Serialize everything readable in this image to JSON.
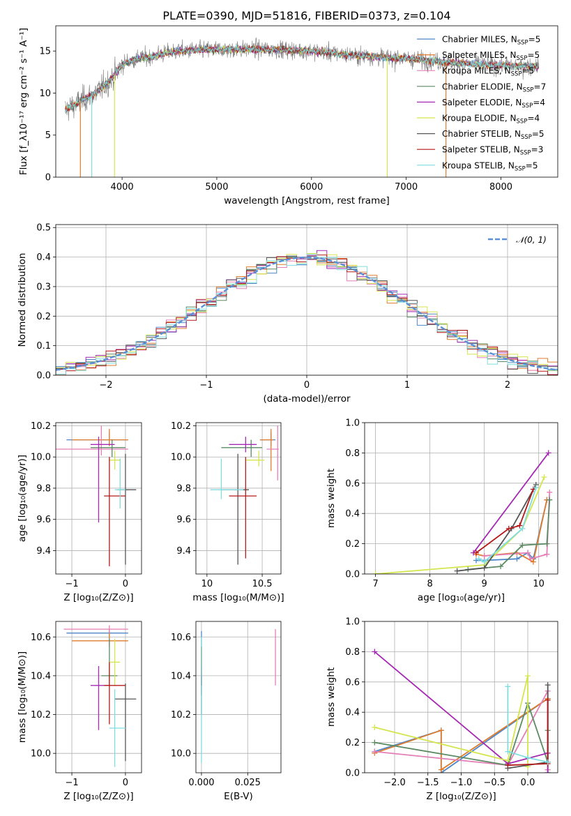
{
  "figure_title": "PLATE=0390, MJD=51816, FIBERID=0373, z=0.104",
  "models": [
    {
      "name": "Chabrier MILES",
      "n": "5",
      "color": "#4f87c7"
    },
    {
      "name": "Salpeter MILES",
      "n": "5",
      "color": "#e07c2c"
    },
    {
      "name": "Kroupa MILES",
      "n": "5",
      "color": "#e37fb6"
    },
    {
      "name": "Chabrier ELODIE",
      "n": "7",
      "color": "#5b8a63"
    },
    {
      "name": "Salpeter ELODIE",
      "n": "4",
      "color": "#a52ab2"
    },
    {
      "name": "Kroupa ELODIE",
      "n": "4",
      "color": "#d4e54d"
    },
    {
      "name": "Chabrier STELIB",
      "n": "5",
      "color": "#555555"
    },
    {
      "name": "Salpeter STELIB",
      "n": "3",
      "color": "#b41919"
    },
    {
      "name": "Kroupa STELIB",
      "n": "5",
      "color": "#7fdde0"
    }
  ],
  "chart_data": [
    {
      "id": "spectrum",
      "type": "line",
      "xlabel": "wavelength [Angstrom, rest frame]",
      "ylabel": "Flux [f_λ10⁻¹⁷ erg cm⁻² s⁻¹ A⁻¹]",
      "xlim": [
        3300,
        8600
      ],
      "ylim": [
        0,
        18
      ],
      "xticks": [
        4000,
        5000,
        6000,
        7000,
        8000
      ],
      "yticks": [
        0,
        5,
        10,
        15
      ],
      "legend_position": "upper right",
      "continuum": {
        "x": [
          3400,
          3500,
          3600,
          3700,
          3800,
          3900,
          4000,
          4100,
          4200,
          4300,
          4400,
          4600,
          4800,
          5000,
          5200,
          5400,
          5600,
          5800,
          6000,
          6200,
          6400,
          6600,
          6800,
          7000,
          7200,
          7400,
          7600,
          7800,
          8000,
          8200,
          8400
        ],
        "y": [
          8.0,
          8.6,
          9.3,
          9.8,
          10.8,
          11.8,
          13.4,
          13.9,
          14.2,
          14.3,
          14.6,
          15.0,
          15.1,
          15.2,
          15.2,
          15.2,
          15.2,
          15.1,
          15.0,
          14.8,
          14.5,
          14.4,
          14.2,
          14.1,
          13.9,
          13.7,
          13.5,
          13.4,
          13.3,
          13.2,
          13.2
        ]
      },
      "dropouts": [
        {
          "x": 3560,
          "model": "Salpeter MILES"
        },
        {
          "x": 3680,
          "model": "Kroupa STELIB"
        },
        {
          "x": 3920,
          "model": "Kroupa ELODIE"
        },
        {
          "x": 6800,
          "model": "Kroupa ELODIE"
        },
        {
          "x": 7420,
          "model": "Salpeter MILES"
        }
      ]
    },
    {
      "id": "residuals",
      "type": "histogram",
      "xlabel": "(data-model)/error",
      "ylabel": "Normed distribution",
      "xlim": [
        -2.5,
        2.5
      ],
      "ylim": [
        0,
        0.51
      ],
      "xticks": [
        -2,
        -1,
        0,
        1,
        2
      ],
      "yticks": [
        0.0,
        0.1,
        0.2,
        0.3,
        0.4,
        0.5
      ],
      "reference_label": "𝒩(0, 1)",
      "reference_color": "#5b8fd6",
      "bins": {
        "start": -2.5,
        "width": 0.1,
        "count": 50
      }
    },
    {
      "id": "age_vs_Z",
      "type": "errorbar",
      "xlabel": "Z [log₁₀(Z/Z⊙)]",
      "ylabel": "age  [log₁₀(age/yr)]",
      "xlim": [
        -1.3,
        0.3
      ],
      "ylim": [
        9.25,
        10.22
      ],
      "xticks": [
        -1,
        0
      ],
      "yticks": [
        9.4,
        9.6,
        9.8,
        10.0,
        10.2
      ],
      "points": [
        {
          "model": "Chabrier MILES",
          "x": -0.3,
          "xerr": [
            0.8,
            0.35
          ],
          "y": 10.11,
          "yerr": [
            0.04,
            0.05
          ]
        },
        {
          "model": "Salpeter MILES",
          "x": -0.3,
          "xerr": [
            0.7,
            0.35
          ],
          "y": 10.11,
          "yerr": [
            0.04,
            0.07
          ]
        },
        {
          "model": "Kroupa MILES",
          "x": -0.45,
          "xerr": [
            0.85,
            0.5
          ],
          "y": 10.05,
          "yerr": [
            0.04,
            0.15
          ]
        },
        {
          "model": "Chabrier ELODIE",
          "x": -0.25,
          "xerr": [
            0.4,
            0.25
          ],
          "y": 10.06,
          "yerr": [
            0.06,
            0.05
          ]
        },
        {
          "model": "Salpeter ELODIE",
          "x": -0.5,
          "xerr": [
            0.15,
            0.3
          ],
          "y": 10.08,
          "yerr": [
            0.5,
            0.05
          ]
        },
        {
          "model": "Kroupa ELODIE",
          "x": -0.2,
          "xerr": [
            0.1,
            0.1
          ],
          "y": 9.98,
          "yerr": [
            0.06,
            0.06
          ]
        },
        {
          "model": "Chabrier STELIB",
          "x": 0.0,
          "xerr": [
            0.15,
            0.2
          ],
          "y": 9.79,
          "yerr": [
            0.48,
            0.23
          ]
        },
        {
          "model": "Salpeter STELIB",
          "x": -0.3,
          "xerr": [
            0.1,
            0.3
          ],
          "y": 9.75,
          "yerr": [
            0.45,
            0.25
          ]
        },
        {
          "model": "Kroupa STELIB",
          "x": -0.1,
          "xerr": [
            0.1,
            0.1
          ],
          "y": 9.79,
          "yerr": [
            0.12,
            0.2
          ]
        }
      ]
    },
    {
      "id": "age_vs_mass",
      "type": "errorbar",
      "xlabel": "mass [log₁₀(M/M⊙)]",
      "ylabel": "",
      "xlim": [
        9.9,
        10.67
      ],
      "ylim": [
        9.25,
        10.22
      ],
      "xticks": [
        10.0,
        10.5
      ],
      "yticks": [
        9.4,
        9.6,
        9.8,
        10.0,
        10.2
      ],
      "points": [
        {
          "model": "Chabrier MILES",
          "x": 10.58,
          "xerr": [
            0.1,
            0.04
          ],
          "y": 10.11,
          "yerr": [
            0.04,
            0.05
          ]
        },
        {
          "model": "Salpeter MILES",
          "x": 10.58,
          "xerr": [
            0.1,
            0.02
          ],
          "y": 10.11,
          "yerr": [
            0.2,
            0.07
          ]
        },
        {
          "model": "Kroupa MILES",
          "x": 10.64,
          "xerr": [
            0.1,
            0.01
          ],
          "y": 10.05,
          "yerr": [
            0.2,
            0.15
          ]
        },
        {
          "model": "Chabrier ELODIE",
          "x": 10.4,
          "xerr": [
            0.27,
            0.1
          ],
          "y": 10.06,
          "yerr": [
            0.06,
            0.05
          ]
        },
        {
          "model": "Salpeter ELODIE",
          "x": 10.35,
          "xerr": [
            0.15,
            0.1
          ],
          "y": 10.08,
          "yerr": [
            0.05,
            0.05
          ]
        },
        {
          "model": "Kroupa ELODIE",
          "x": 10.47,
          "xerr": [
            0.12,
            0.05
          ],
          "y": 9.98,
          "yerr": [
            0.04,
            0.06
          ]
        },
        {
          "model": "Chabrier STELIB",
          "x": 10.28,
          "xerr": [
            0.15,
            0.1
          ],
          "y": 9.79,
          "yerr": [
            0.48,
            0.23
          ]
        },
        {
          "model": "Salpeter STELIB",
          "x": 10.35,
          "xerr": [
            0.15,
            0.1
          ],
          "y": 9.75,
          "yerr": [
            0.4,
            0.25
          ]
        },
        {
          "model": "Kroupa STELIB",
          "x": 10.13,
          "xerr": [
            0.1,
            0.2
          ],
          "y": 9.79,
          "yerr": [
            0.06,
            0.2
          ]
        }
      ]
    },
    {
      "id": "weight_vs_age",
      "type": "line",
      "xlabel": "age  [log₁₀(age/yr)]",
      "ylabel": "mass weight",
      "xlim": [
        6.8,
        10.35
      ],
      "ylim": [
        0,
        1.0
      ],
      "xticks": [
        7,
        8,
        9,
        10
      ],
      "yticks": [
        0.0,
        0.2,
        0.4,
        0.6,
        0.8,
        1.0
      ],
      "series": [
        {
          "model": "Chabrier MILES",
          "x": [
            8.85,
            9.0,
            9.6,
            9.8,
            9.9,
            10.15
          ],
          "y": [
            0.09,
            0.09,
            0.1,
            0.14,
            0.1,
            0.49
          ]
        },
        {
          "model": "Salpeter MILES",
          "x": [
            8.85,
            9.0,
            9.6,
            9.9,
            10.15
          ],
          "y": [
            0.13,
            0.12,
            0.14,
            0.08,
            0.49
          ]
        },
        {
          "model": "Kroupa MILES",
          "x": [
            9.0,
            9.8,
            9.85,
            10.15,
            10.2
          ],
          "y": [
            0.12,
            0.14,
            0.1,
            0.13,
            0.54
          ]
        },
        {
          "model": "Chabrier ELODIE",
          "x": [
            8.7,
            9.3,
            9.7,
            10.15,
            10.2
          ],
          "y": [
            0.03,
            0.05,
            0.19,
            0.2,
            0.49
          ]
        },
        {
          "model": "Salpeter ELODIE",
          "x": [
            8.8,
            10.18
          ],
          "y": [
            0.14,
            0.8
          ]
        },
        {
          "model": "Kroupa ELODIE",
          "x": [
            7.0,
            9.0,
            9.7,
            10.1
          ],
          "y": [
            0.0,
            0.06,
            0.3,
            0.64
          ]
        },
        {
          "model": "Chabrier STELIB",
          "x": [
            8.5,
            9.0,
            9.5,
            9.95
          ],
          "y": [
            0.02,
            0.04,
            0.3,
            0.59
          ]
        },
        {
          "model": "Salpeter STELIB",
          "x": [
            8.85,
            9.45,
            9.65,
            9.9
          ],
          "y": [
            0.14,
            0.3,
            0.32,
            0.56
          ]
        },
        {
          "model": "Kroupa STELIB",
          "x": [
            8.9,
            9.0,
            9.7,
            9.95
          ],
          "y": [
            0.1,
            0.08,
            0.3,
            0.57
          ]
        }
      ]
    },
    {
      "id": "mass_vs_Z",
      "type": "errorbar",
      "xlabel": "Z [log₁₀(Z/Z⊙)]",
      "ylabel": "mass [log₁₀(M/M⊙)]",
      "xlim": [
        -1.3,
        0.3
      ],
      "ylim": [
        9.9,
        10.68
      ],
      "xticks": [
        -1,
        0
      ],
      "yticks": [
        10.0,
        10.2,
        10.4,
        10.6
      ],
      "points": [
        {
          "model": "Chabrier MILES",
          "x": -0.3,
          "xerr": [
            0.8,
            0.35
          ],
          "y": 10.62,
          "yerr": [
            0.03,
            0.02
          ]
        },
        {
          "model": "Salpeter MILES",
          "x": -0.3,
          "xerr": [
            0.7,
            0.35
          ],
          "y": 10.58,
          "yerr": [
            0.03,
            0.05
          ]
        },
        {
          "model": "Kroupa MILES",
          "x": -0.3,
          "xerr": [
            0.85,
            0.35
          ],
          "y": 10.64,
          "yerr": [
            0.02,
            0.02
          ]
        },
        {
          "model": "Chabrier ELODIE",
          "x": -0.3,
          "xerr": [
            0.15,
            0.15
          ],
          "y": 10.4,
          "yerr": [
            0.05,
            0.19
          ]
        },
        {
          "model": "Salpeter ELODIE",
          "x": -0.5,
          "xerr": [
            0.15,
            0.2
          ],
          "y": 10.35,
          "yerr": [
            0.23,
            0.1
          ]
        },
        {
          "model": "Kroupa ELODIE",
          "x": -0.2,
          "xerr": [
            0.1,
            0.1
          ],
          "y": 10.47,
          "yerr": [
            0.12,
            0.12
          ]
        },
        {
          "model": "Chabrier STELIB",
          "x": 0.0,
          "xerr": [
            0.2,
            0.2
          ],
          "y": 10.28,
          "yerr": [
            0.32,
            0.08
          ]
        },
        {
          "model": "Salpeter STELIB",
          "x": -0.3,
          "xerr": [
            0.1,
            0.3
          ],
          "y": 10.35,
          "yerr": [
            0.2,
            0.12
          ]
        },
        {
          "model": "Kroupa STELIB",
          "x": -0.2,
          "xerr": [
            0.1,
            0.2
          ],
          "y": 10.13,
          "yerr": [
            0.2,
            0.2
          ]
        }
      ]
    },
    {
      "id": "mass_vs_EBV",
      "type": "errorbar",
      "xlabel": "E(B-V)",
      "ylabel": "",
      "xlim": [
        -0.003,
        0.043
      ],
      "ylim": [
        9.9,
        10.68
      ],
      "xticks": [
        0.0,
        0.025
      ],
      "xtick_labels": [
        "0.000",
        "0.025"
      ],
      "yticks": [
        10.0,
        10.2,
        10.4,
        10.6
      ],
      "points": [
        {
          "model": "Chabrier MILES",
          "x": 0.0,
          "xerr": [
            0,
            0
          ],
          "y": 10.55,
          "yerr": [
            0.05,
            0.08
          ]
        },
        {
          "model": "Salpeter MILES",
          "x": 0.0,
          "xerr": [
            0,
            0
          ],
          "y": 10.5,
          "yerr": [
            0.05,
            0.05
          ]
        },
        {
          "model": "Kroupa MILES",
          "x": 0.04,
          "xerr": [
            0,
            0
          ],
          "y": 10.5,
          "yerr": [
            0.15,
            0.14
          ]
        },
        {
          "model": "Chabrier ELODIE",
          "x": 0.0,
          "xerr": [
            0,
            0
          ],
          "y": 10.4,
          "yerr": [
            0.05,
            0.1
          ]
        },
        {
          "model": "Salpeter ELODIE",
          "x": 0.0,
          "xerr": [
            0,
            0
          ],
          "y": 10.35,
          "yerr": [
            0.05,
            0.1
          ]
        },
        {
          "model": "Kroupa ELODIE",
          "x": 0.0,
          "xerr": [
            0,
            0
          ],
          "y": 10.5,
          "yerr": [
            0.08,
            0.05
          ]
        },
        {
          "model": "Chabrier STELIB",
          "x": 0.0,
          "xerr": [
            0,
            0
          ],
          "y": 10.3,
          "yerr": [
            0.1,
            0.1
          ]
        },
        {
          "model": "Salpeter STELIB",
          "x": 0.0,
          "xerr": [
            0,
            0
          ],
          "y": 10.45,
          "yerr": [
            0.1,
            0.1
          ]
        },
        {
          "model": "Kroupa STELIB",
          "x": 0.0,
          "xerr": [
            0,
            0
          ],
          "y": 10.2,
          "yerr": [
            0.25,
            0.4
          ]
        }
      ]
    },
    {
      "id": "weight_vs_Z",
      "type": "line",
      "xlabel": "Z [log₁₀(Z/Z⊙)]",
      "ylabel": "mass weight",
      "xlim": [
        -2.45,
        0.45
      ],
      "ylim": [
        0,
        1.0
      ],
      "xticks": [
        -2.0,
        -1.5,
        -1.0,
        -0.5,
        0.0
      ],
      "xtick_labels": [
        "−2.0",
        "−1.5",
        "−1.0",
        "−0.5",
        "0.0"
      ],
      "yticks": [
        0.0,
        0.2,
        0.4,
        0.6,
        0.8,
        1.0
      ],
      "series": [
        {
          "model": "Chabrier MILES",
          "x": [
            -2.3,
            -1.3,
            -1.3,
            0.3,
            0.3
          ],
          "y": [
            0.14,
            0.28,
            0.0,
            0.49,
            0.0
          ]
        },
        {
          "model": "Salpeter MILES",
          "x": [
            -2.3,
            -1.3,
            -1.3,
            0.3,
            0.3
          ],
          "y": [
            0.13,
            0.28,
            0.02,
            0.49,
            0.02
          ]
        },
        {
          "model": "Kroupa MILES",
          "x": [
            -2.3,
            -0.3,
            0.3,
            0.3
          ],
          "y": [
            0.14,
            0.05,
            0.54,
            0.02
          ]
        },
        {
          "model": "Chabrier ELODIE",
          "x": [
            -2.3,
            -0.3,
            0.0,
            0.3,
            0.3
          ],
          "y": [
            0.2,
            0.05,
            0.46,
            0.07,
            0.28
          ]
        },
        {
          "model": "Salpeter ELODIE",
          "x": [
            -2.3,
            -0.3,
            0.3,
            0.3
          ],
          "y": [
            0.8,
            0.06,
            0.13,
            0.0
          ]
        },
        {
          "model": "Kroupa ELODIE",
          "x": [
            -2.3,
            -0.3,
            0.0,
            0.0
          ],
          "y": [
            0.3,
            0.08,
            0.64,
            0.04
          ]
        },
        {
          "model": "Chabrier STELIB",
          "x": [
            -0.3,
            0.3,
            0.3
          ],
          "y": [
            0.03,
            0.07,
            0.58
          ]
        },
        {
          "model": "Salpeter STELIB",
          "x": [
            -0.3,
            0.3,
            0.3
          ],
          "y": [
            0.05,
            0.06,
            0.48
          ]
        },
        {
          "model": "Kroupa STELIB",
          "x": [
            -0.3,
            -0.3,
            0.0,
            0.3
          ],
          "y": [
            0.57,
            0.14,
            0.1,
            0.07
          ]
        }
      ]
    }
  ]
}
